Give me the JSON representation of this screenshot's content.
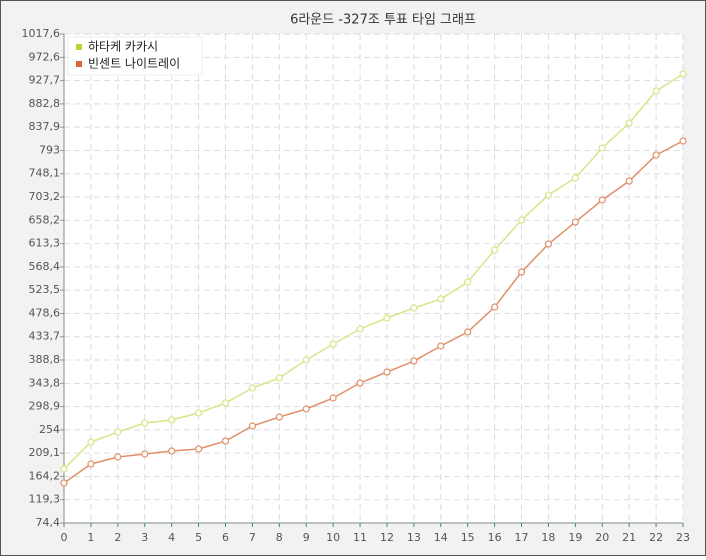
{
  "chart_data": {
    "type": "line",
    "title": "6라운드 -327조 투표 타임 그래프",
    "x": [
      0,
      1,
      2,
      3,
      4,
      5,
      6,
      7,
      8,
      9,
      10,
      11,
      12,
      13,
      14,
      15,
      16,
      17,
      18,
      19,
      20,
      21,
      22,
      23
    ],
    "xlim": [
      0,
      23
    ],
    "xticks": [
      0,
      1,
      2,
      3,
      4,
      5,
      6,
      7,
      8,
      9,
      10,
      11,
      12,
      13,
      14,
      15,
      16,
      17,
      18,
      19,
      20,
      21,
      22,
      23
    ],
    "ylim": [
      74.4,
      1017.6
    ],
    "yticks": [
      {
        "value": 74.4,
        "label": "74,4"
      },
      {
        "value": 119.3,
        "label": "119,3"
      },
      {
        "value": 164.2,
        "label": "164,2"
      },
      {
        "value": 209.1,
        "label": "209,1"
      },
      254,
      {
        "value": 298.9,
        "label": "298,9"
      },
      {
        "value": 343.8,
        "label": "343,8"
      },
      {
        "value": 388.8,
        "label": "388,8"
      },
      {
        "value": 433.7,
        "label": "433,7"
      },
      {
        "value": 478.6,
        "label": "478,6"
      },
      {
        "value": 523.5,
        "label": "523,5"
      },
      {
        "value": 568.4,
        "label": "568,4"
      },
      {
        "value": 613.3,
        "label": "613,3"
      },
      {
        "value": 658.2,
        "label": "658,2"
      },
      {
        "value": 703.2,
        "label": "703,2"
      },
      {
        "value": 748.1,
        "label": "748,1"
      },
      793,
      {
        "value": 837.9,
        "label": "837,9"
      },
      {
        "value": 882.8,
        "label": "882,8"
      },
      {
        "value": 927.7,
        "label": "927,7"
      },
      {
        "value": 972.6,
        "label": "972,6"
      },
      {
        "value": 1017.6,
        "label": "1017,6"
      }
    ],
    "grid": true,
    "legend": "top-left",
    "series": [
      {
        "name": "하타케 카카시",
        "color": "#d2e888",
        "legend_color": "#b8d335",
        "values": [
          178.5,
          230.6,
          249.9,
          267.3,
          273.0,
          286.6,
          305.8,
          334.8,
          354.1,
          388.8,
          419.6,
          448.6,
          469.8,
          489.1,
          506.4,
          539.2,
          600.9,
          658.8,
          707.0,
          739.8,
          797.6,
          845.9,
          907.6,
          940.4
        ]
      },
      {
        "name": "빈센트 나이트레이",
        "color": "#e09068",
        "legend_color": "#d4663a",
        "values": [
          151.5,
          188.2,
          201.7,
          207.5,
          213.3,
          217.1,
          232.5,
          261.5,
          278.8,
          294.3,
          315.5,
          344.4,
          365.6,
          386.8,
          415.8,
          442.8,
          491.0,
          558.5,
          612.5,
          654.9,
          697.4,
          734.0,
          784.2,
          811.2
        ]
      }
    ]
  }
}
